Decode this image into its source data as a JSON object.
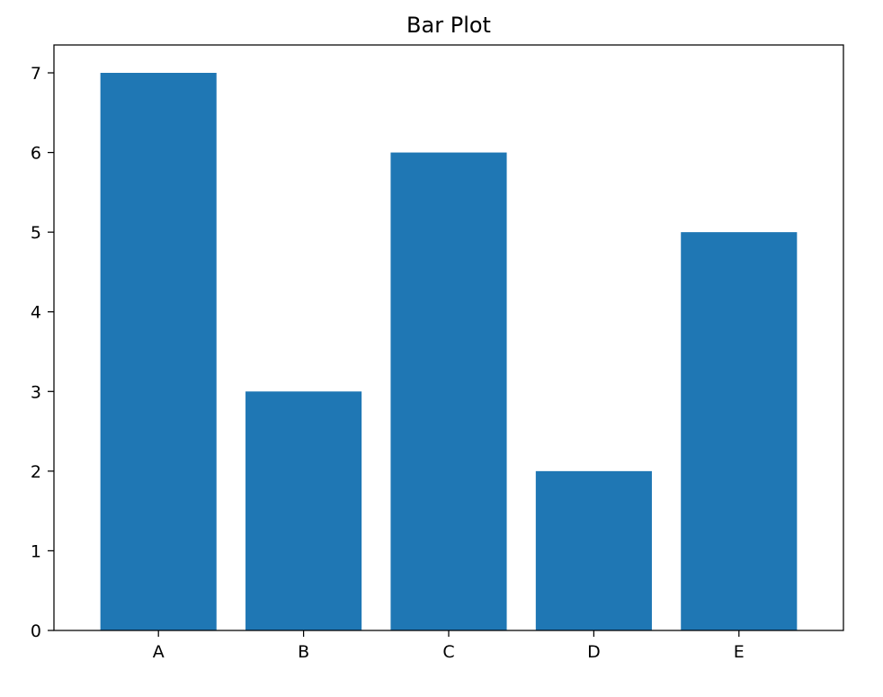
{
  "chart_data": {
    "type": "bar",
    "title": "Bar Plot",
    "xlabel": "",
    "ylabel": "",
    "categories": [
      "A",
      "B",
      "C",
      "D",
      "E"
    ],
    "values": [
      7,
      3,
      6,
      2,
      5
    ],
    "ylim": [
      0,
      7.35
    ],
    "yticks": [
      0,
      1,
      2,
      3,
      4,
      5,
      6,
      7
    ],
    "bar_color": "#1f77b4",
    "grid": false,
    "legend": null
  }
}
